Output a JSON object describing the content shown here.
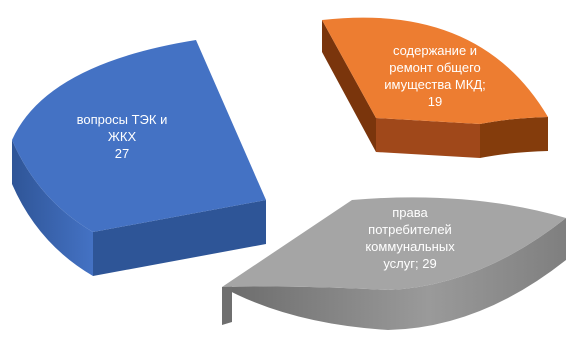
{
  "chart_data": {
    "type": "pie",
    "exploded": true,
    "three_d": true,
    "legend": "none",
    "slices": [
      {
        "key": "tek",
        "category": "вопросы ТЭК и ЖКХ",
        "value": 27,
        "label_lines": [
          "вопросы ТЭК и",
          "ЖКХ",
          "27"
        ],
        "color": "#4472C4"
      },
      {
        "key": "mkd",
        "category": "содержание и ремонт общего имущества МКД",
        "value": 19,
        "label_lines": [
          "содержание и",
          "ремонт общего",
          "имущества МКД;",
          "19"
        ],
        "color": "#ED7D31"
      },
      {
        "key": "consumers",
        "category": "права потребителей коммунальных услуг",
        "value": 29,
        "label_lines": [
          "права",
          "потребителей",
          "коммунальных",
          "услуг; 29"
        ],
        "color": "#A5A5A5"
      }
    ]
  }
}
